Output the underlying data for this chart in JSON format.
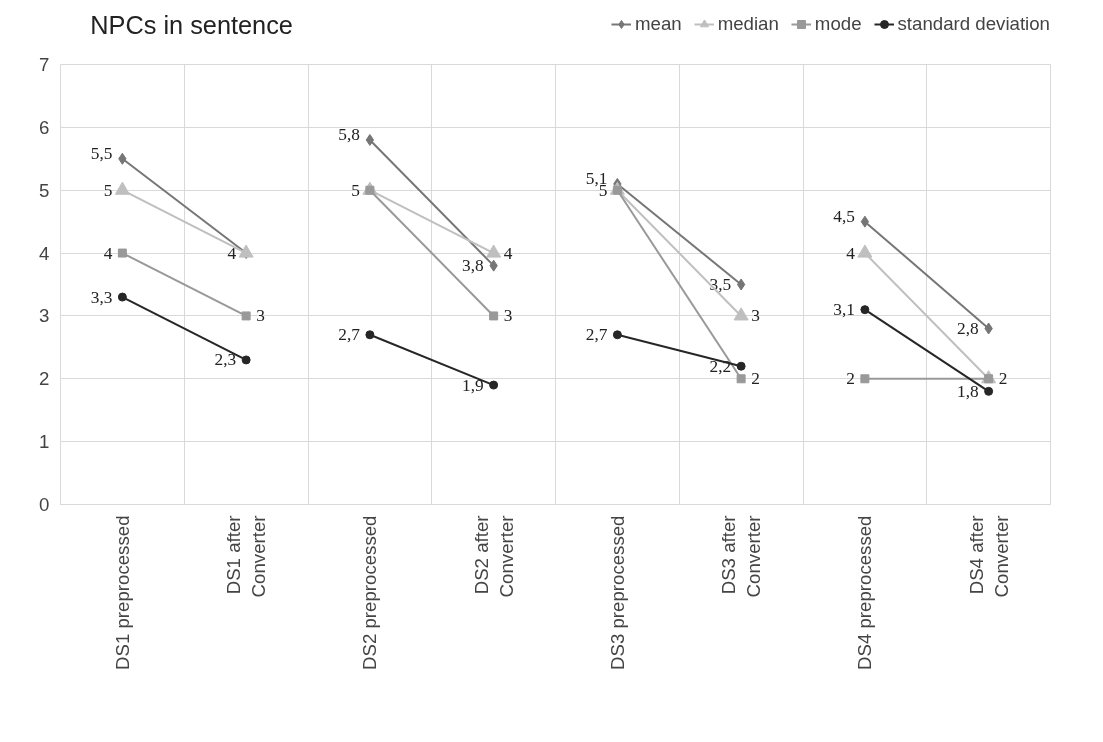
{
  "chart_data": {
    "type": "line",
    "title": "NPCs in sentence",
    "categories": [
      "DS1 preprocessed",
      "DS1 after Converter",
      "DS2 preprocessed",
      "DS2 after Converter",
      "DS3 preprocessed",
      "DS3 after Converter",
      "DS4 preprocessed",
      "DS4 after Converter"
    ],
    "series": [
      {
        "name": "mean",
        "color": "#767676",
        "marker": "diamond",
        "values": [
          5.5,
          4,
          null,
          null,
          null,
          null,
          null,
          null
        ],
        "value_labels": [
          "5,5",
          "4",
          null,
          null,
          null,
          null,
          null,
          null
        ]
      },
      {
        "name": "median",
        "color": "#bfbfbf",
        "marker": "triangle",
        "values": [
          5,
          4,
          null,
          null,
          null,
          null,
          null,
          null
        ],
        "value_labels": [
          "5",
          null,
          null,
          null,
          null,
          null,
          null,
          null
        ]
      },
      {
        "name": "mode",
        "color": "#999999",
        "marker": "square",
        "values": [
          4,
          3,
          null,
          null,
          null,
          null,
          null,
          null
        ],
        "value_labels": [
          "4",
          "3",
          null,
          null,
          null,
          null,
          null,
          null
        ]
      },
      {
        "name": "standard deviation",
        "color": "#262626",
        "marker": "circle",
        "values": [
          3.3,
          2.3,
          null,
          null,
          null,
          null,
          null,
          null
        ],
        "value_labels": [
          "3,3",
          "2,3",
          null,
          null,
          null,
          null,
          null,
          null
        ]
      },
      {
        "color": "#767676",
        "marker": "diamond",
        "values": [
          null,
          null,
          5.8,
          3.8,
          null,
          null,
          null,
          null
        ],
        "value_labels": [
          null,
          null,
          "5,8",
          "3,8",
          null,
          null,
          null,
          null
        ]
      },
      {
        "color": "#bfbfbf",
        "marker": "triangle",
        "values": [
          null,
          null,
          5,
          4,
          null,
          null,
          null,
          null
        ],
        "value_labels": [
          null,
          null,
          "5",
          "4",
          null,
          null,
          null,
          null
        ]
      },
      {
        "color": "#999999",
        "marker": "square",
        "values": [
          null,
          null,
          5,
          3,
          null,
          null,
          null,
          null
        ],
        "value_labels": [
          null,
          null,
          null,
          "3",
          null,
          null,
          null,
          null
        ]
      },
      {
        "color": "#262626",
        "marker": "circle",
        "values": [
          null,
          null,
          2.7,
          1.9,
          null,
          null,
          null,
          null
        ],
        "value_labels": [
          null,
          null,
          "2,7",
          "1,9",
          null,
          null,
          null,
          null
        ]
      },
      {
        "color": "#767676",
        "marker": "diamond",
        "values": [
          null,
          null,
          null,
          null,
          5.1,
          3.5,
          null,
          null
        ],
        "value_labels": [
          null,
          null,
          null,
          null,
          "5,1",
          "3,5",
          null,
          null
        ]
      },
      {
        "color": "#bfbfbf",
        "marker": "triangle",
        "values": [
          null,
          null,
          null,
          null,
          5,
          3,
          null,
          null
        ],
        "value_labels": [
          null,
          null,
          null,
          null,
          "5",
          "3",
          null,
          null
        ]
      },
      {
        "color": "#999999",
        "marker": "square",
        "values": [
          null,
          null,
          null,
          null,
          5,
          2,
          null,
          null
        ],
        "value_labels": [
          null,
          null,
          null,
          null,
          null,
          "2",
          null,
          null
        ]
      },
      {
        "color": "#262626",
        "marker": "circle",
        "values": [
          null,
          null,
          null,
          null,
          2.7,
          2.2,
          null,
          null
        ],
        "value_labels": [
          null,
          null,
          null,
          null,
          "2,7",
          "2,2",
          null,
          null
        ]
      },
      {
        "color": "#767676",
        "marker": "diamond",
        "values": [
          null,
          null,
          null,
          null,
          null,
          null,
          4.5,
          2.8
        ],
        "value_labels": [
          null,
          null,
          null,
          null,
          null,
          null,
          "4,5",
          "2,8"
        ]
      },
      {
        "color": "#bfbfbf",
        "marker": "triangle",
        "values": [
          null,
          null,
          null,
          null,
          null,
          null,
          4,
          2
        ],
        "value_labels": [
          null,
          null,
          null,
          null,
          null,
          null,
          "4",
          null
        ]
      },
      {
        "color": "#999999",
        "marker": "square",
        "values": [
          null,
          null,
          null,
          null,
          null,
          null,
          2,
          2
        ],
        "value_labels": [
          null,
          null,
          null,
          null,
          null,
          null,
          "2",
          "2"
        ]
      },
      {
        "color": "#262626",
        "marker": "circle",
        "values": [
          null,
          null,
          null,
          null,
          null,
          null,
          3.1,
          1.8
        ],
        "value_labels": [
          null,
          null,
          null,
          null,
          null,
          null,
          "3,1",
          "1,8"
        ]
      }
    ],
    "ylim": [
      0,
      7
    ],
    "yticks": [
      0,
      1,
      2,
      3,
      4,
      5,
      6,
      7
    ],
    "grid": true,
    "legend": "top right",
    "line_style": "solid"
  }
}
